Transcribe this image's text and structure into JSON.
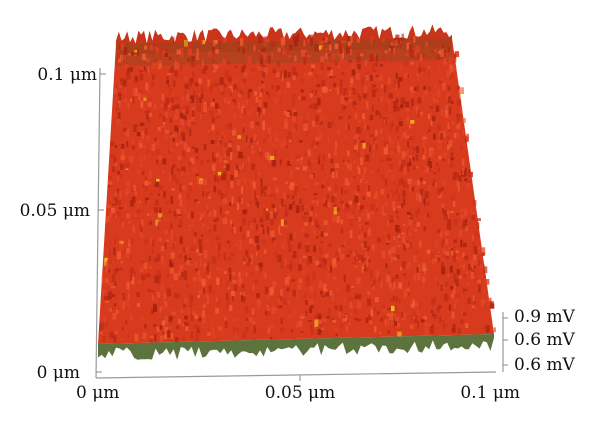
{
  "chart_data": {
    "type": "heatmap",
    "title": "",
    "x_axis": {
      "ticks": [
        "0 μm",
        "0.05 μm",
        "0.1 μm"
      ],
      "range": [
        0,
        0.1
      ],
      "unit": "μm"
    },
    "y_axis": {
      "ticks": [
        "0 μm",
        "0.05 μm",
        "0.1 μm"
      ],
      "range": [
        0,
        0.1
      ],
      "unit": "μm"
    },
    "z_axis": {
      "ticks": [
        "0.6 mV",
        "0.6 mV",
        "0.9 mV"
      ],
      "unit": "mV"
    },
    "surface_color": "#d83a1e",
    "highlight_color": "#f0c020",
    "shadow_color": "#3f5a1c"
  }
}
